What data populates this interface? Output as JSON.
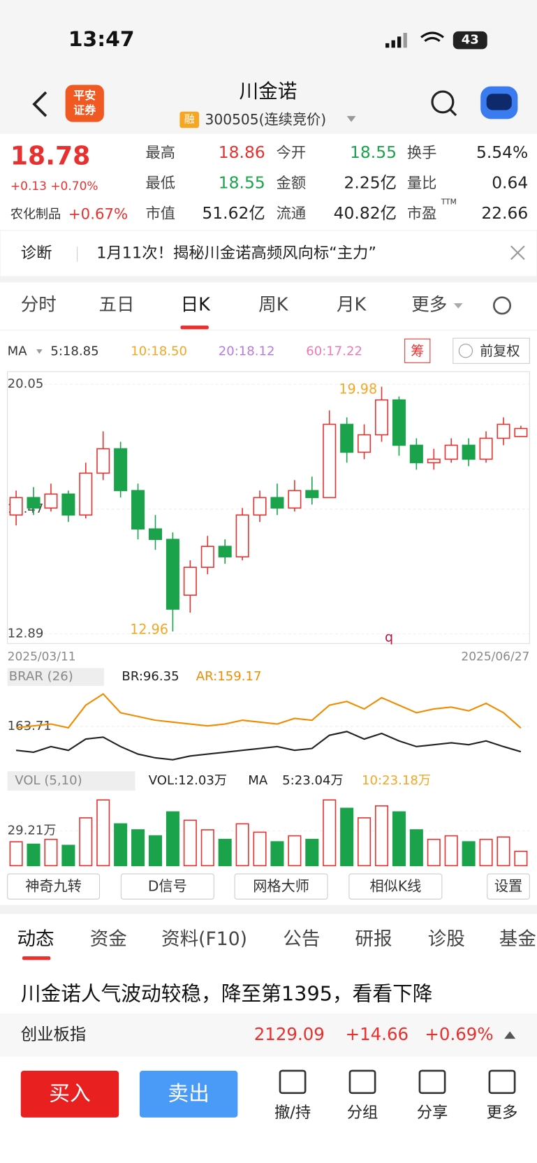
{
  "status": {
    "time": "13:47",
    "battery": "43"
  },
  "header": {
    "title": "川金诺",
    "broker": [
      "平安",
      "证券"
    ],
    "margin": "融",
    "code": "300505(连续竞价)"
  },
  "quote": {
    "price": "18.78",
    "change": "+0.13",
    "pct": "+0.70%",
    "sector": "农化制品",
    "sector_pct": "+0.67%",
    "stats": [
      {
        "label": "最高",
        "value": "18.86",
        "color": "#e8312f"
      },
      {
        "label": "今开",
        "value": "18.55",
        "color": "#1aa34a"
      },
      {
        "label": "换手",
        "value": "5.54%",
        "color": "#222"
      },
      {
        "label": "最低",
        "value": "18.55",
        "color": "#1aa34a"
      },
      {
        "label": "金额",
        "value": "2.25亿",
        "color": "#222"
      },
      {
        "label": "量比",
        "value": "0.64",
        "color": "#222"
      },
      {
        "label": "市值",
        "value": "51.62亿",
        "color": "#222"
      },
      {
        "label": "流通",
        "value": "40.82亿",
        "color": "#222"
      },
      {
        "label": "市盈",
        "value": "22.66",
        "color": "#222"
      }
    ],
    "pe_suffix": "TTM"
  },
  "banner": {
    "tag": "诊断",
    "text": "1月11次！揭秘川金诺高频风向标“主力”"
  },
  "tabs": [
    "分时",
    "五日",
    "日K",
    "周K",
    "月K",
    "更多"
  ],
  "ma_legend": {
    "title": "MA",
    "items": [
      "5:18.85",
      "10:18.50",
      "20:18.12",
      "60:17.22"
    ],
    "chip": "筹",
    "adjust": "前复权"
  },
  "kline": {
    "type": "candlestick",
    "ylim": [
      12.89,
      20.05
    ],
    "yticks": [
      20.05,
      16.47,
      12.89
    ],
    "max_label": "19.98",
    "min_label": "12.96",
    "start_date": "2025/03/11",
    "end_date": "2025/06/27",
    "annotation": "q",
    "candles": [
      [
        16.3,
        16.8,
        17.0,
        16.0
      ],
      [
        16.8,
        16.5,
        17.1,
        16.3
      ],
      [
        16.5,
        16.9,
        17.2,
        16.4
      ],
      [
        16.9,
        16.3,
        17.0,
        16.1
      ],
      [
        16.3,
        17.5,
        17.8,
        16.2
      ],
      [
        17.5,
        18.2,
        18.7,
        17.3
      ],
      [
        18.2,
        17.0,
        18.4,
        16.8
      ],
      [
        17.0,
        15.9,
        17.2,
        15.6
      ],
      [
        15.9,
        15.6,
        16.3,
        15.3
      ],
      [
        15.6,
        13.6,
        15.8,
        12.96
      ],
      [
        14.0,
        14.8,
        15.0,
        13.5
      ],
      [
        14.8,
        15.4,
        15.7,
        14.6
      ],
      [
        15.4,
        15.1,
        15.6,
        14.9
      ],
      [
        15.1,
        16.3,
        16.5,
        15.0
      ],
      [
        16.3,
        16.8,
        17.0,
        16.1
      ],
      [
        16.8,
        16.5,
        17.2,
        16.3
      ],
      [
        16.5,
        17.0,
        17.3,
        16.4
      ],
      [
        17.0,
        16.8,
        17.4,
        16.6
      ],
      [
        16.8,
        18.9,
        19.3,
        16.8
      ],
      [
        18.9,
        18.1,
        19.1,
        17.8
      ],
      [
        18.1,
        18.6,
        18.9,
        17.9
      ],
      [
        18.6,
        19.6,
        19.98,
        18.4
      ],
      [
        19.6,
        18.3,
        19.7,
        18.0
      ],
      [
        18.3,
        17.8,
        18.5,
        17.6
      ],
      [
        17.8,
        17.9,
        18.2,
        17.6
      ],
      [
        17.9,
        18.3,
        18.5,
        17.8
      ],
      [
        18.3,
        17.9,
        18.5,
        17.7
      ],
      [
        17.9,
        18.5,
        18.7,
        17.8
      ],
      [
        18.5,
        18.9,
        19.1,
        18.3
      ],
      [
        18.55,
        18.78,
        18.86,
        18.55
      ]
    ]
  },
  "brar": {
    "title": "BRAR (26)",
    "br_label": "BR:96.35",
    "ar_label": "AR:159.17",
    "ylim": [
      60,
      267.42
    ],
    "yticks": [
      163.71
    ],
    "br": [
      100,
      95,
      110,
      100,
      130,
      135,
      110,
      90,
      80,
      75,
      85,
      90,
      95,
      100,
      105,
      110,
      100,
      105,
      140,
      150,
      130,
      145,
      125,
      110,
      115,
      120,
      115,
      125,
      110,
      96.35
    ],
    "ar": [
      160,
      165,
      170,
      160,
      220,
      250,
      200,
      190,
      180,
      175,
      170,
      165,
      170,
      180,
      175,
      170,
      185,
      180,
      220,
      230,
      210,
      240,
      220,
      200,
      210,
      215,
      205,
      225,
      200,
      159.17
    ]
  },
  "vol": {
    "title": "VOL (5,10)",
    "vol_label": "VOL:12.03万",
    "ma": "MA",
    "ma5": "5:23.04万",
    "ma10": "10:23.18万",
    "ylim": [
      0,
      58.42
    ],
    "yticks": [
      {
        "value": 29.21,
        "label": "29.21万"
      }
    ],
    "values": [
      20,
      18,
      22,
      17,
      40,
      55,
      35,
      30,
      25,
      45,
      38,
      30,
      22,
      35,
      28,
      20,
      25,
      22,
      55,
      48,
      40,
      50,
      45,
      30,
      22,
      25,
      20,
      22,
      24,
      12.03
    ]
  },
  "tools": [
    "神奇九转",
    "D信号",
    "网格大师",
    "相似K线",
    "设置"
  ],
  "info_tabs": [
    "动态",
    "资金",
    "资料(F10)",
    "公告",
    "研报",
    "诊股",
    "基金"
  ],
  "news": "川金诺人气波动较稳，降至第1395，看看下降",
  "index": {
    "name": "创业板指",
    "value": "2129.09",
    "change": "+14.66",
    "pct": "+0.69%"
  },
  "actions": {
    "buy": "买入",
    "sell": "卖出",
    "items": [
      "撤/持",
      "分组",
      "分享",
      "更多"
    ]
  }
}
